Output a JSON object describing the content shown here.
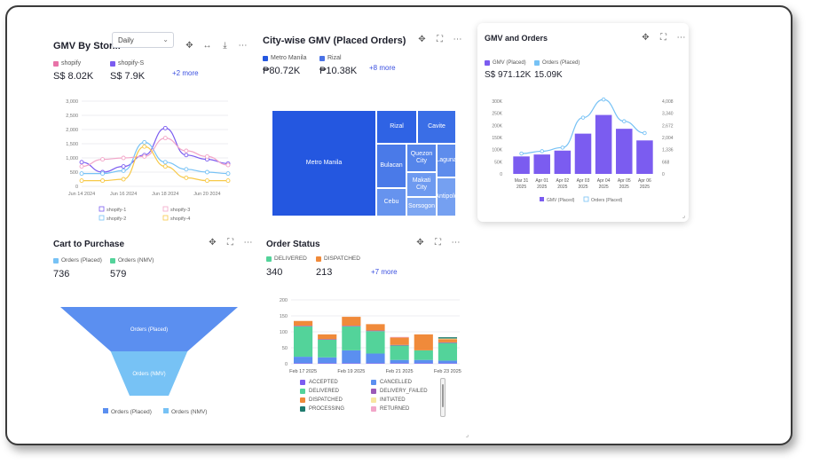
{
  "card1": {
    "title": "GMV By Stor...",
    "dropdown": "Daily",
    "series_labels": [
      "shopify",
      "shopify-S"
    ],
    "values": [
      "S$ 8.02K",
      "S$ 7.9K"
    ],
    "more": "+2 more",
    "colors": [
      "#e873a8",
      "#7b5cf0"
    ]
  },
  "card2": {
    "title": "City-wise GMV (Placed Orders)",
    "series_labels": [
      "Metro Manila",
      "Rizal"
    ],
    "values": [
      "₱80.72K",
      "₱10.38K"
    ],
    "more": "+8 more",
    "colors": [
      "#2457e0",
      "#4a72e6"
    ]
  },
  "card3": {
    "title": "GMV and Orders",
    "series_labels": [
      "GMV (Placed)",
      "Orders (Placed)"
    ],
    "values": [
      "S$ 971.12K",
      "15.09K"
    ],
    "colors": [
      "#7b5cf0",
      "#77c2f5"
    ]
  },
  "card4": {
    "title": "Cart to Purchase",
    "series_labels": [
      "Orders (Placed)",
      "Orders (NMV)"
    ],
    "values": [
      "736",
      "579"
    ],
    "colors": [
      "#77c2f5",
      "#53d39a"
    ]
  },
  "card5": {
    "title": "Order Status",
    "series_labels": [
      "DELIVERED",
      "DISPATCHED"
    ],
    "values": [
      "340",
      "213"
    ],
    "more": "+7 more",
    "colors": [
      "#53d39a",
      "#f08a3a"
    ]
  },
  "chart_data": [
    {
      "type": "line",
      "x": [
        "Jun 14 2024",
        "Jun 15 2024",
        "Jun 16 2024",
        "Jun 17 2024",
        "Jun 18 2024",
        "Jun 19 2024",
        "Jun 20 2024",
        "Jun 21 2024"
      ],
      "xticks": [
        "Jun 14 2024",
        "Jun 16 2024",
        "Jun 18 2024",
        "Jun 20 2024"
      ],
      "ylim": [
        0,
        3000
      ],
      "yticks": [
        "0",
        "500",
        "1,000",
        "1,500",
        "2,000",
        "2,500",
        "3,000"
      ],
      "series": [
        {
          "name": "shopify-1",
          "color": "#7b5cf0",
          "values": [
            850,
            500,
            700,
            1100,
            2050,
            1100,
            950,
            800
          ]
        },
        {
          "name": "shopify-2",
          "color": "#77c2f5",
          "values": [
            450,
            450,
            550,
            1550,
            850,
            600,
            500,
            450
          ]
        },
        {
          "name": "shopify-3",
          "color": "#f2a6c8",
          "values": [
            700,
            950,
            1000,
            1050,
            1700,
            1250,
            1050,
            750
          ]
        },
        {
          "name": "shopify-4",
          "color": "#f7c948",
          "values": [
            200,
            200,
            250,
            1400,
            700,
            300,
            200,
            200
          ]
        }
      ],
      "legend": [
        "shopify-1",
        "shopify-3",
        "shopify-2",
        "shopify-4"
      ]
    },
    {
      "type": "treemap",
      "cells": [
        {
          "label": "Metro Manila"
        },
        {
          "label": "Rizal"
        },
        {
          "label": "Cavite"
        },
        {
          "label": "Bulacan"
        },
        {
          "label": "Quezon City"
        },
        {
          "label": "Laguna"
        },
        {
          "label": "Cebu"
        },
        {
          "label": "Makati City"
        },
        {
          "label": "Antipolo"
        },
        {
          "label": "Sorsogon"
        }
      ]
    },
    {
      "type": "bar+line",
      "categories": [
        "Mar 31 2025",
        "Apr 01 2025",
        "Apr 02 2025",
        "Apr 03 2025",
        "Apr 04 2025",
        "Apr 05 2025",
        "Apr 06 2025"
      ],
      "category_lines": [
        [
          "Mar 31",
          "2025"
        ],
        [
          "Apr 01",
          "2025"
        ],
        [
          "Apr 02",
          "2025"
        ],
        [
          "Apr 03",
          "2025"
        ],
        [
          "Apr 04",
          "2025"
        ],
        [
          "Apr 05",
          "2025"
        ],
        [
          "Apr 06",
          "2025"
        ]
      ],
      "bars": {
        "name": "GMV (Placed)",
        "color": "#7b5cf0",
        "values": [
          72000,
          80000,
          96000,
          166000,
          243000,
          186000,
          138000
        ]
      },
      "line": {
        "name": "Orders (Placed)",
        "color": "#77c2f5",
        "values": [
          1120,
          1250,
          1450,
          3100,
          4100,
          2900,
          2250
        ]
      },
      "ylim_left": [
        0,
        300000
      ],
      "yticks_left": [
        "0",
        "50K",
        "100K",
        "150K",
        "200K",
        "250K",
        "300K"
      ],
      "ylim_right": [
        0,
        4008
      ],
      "yticks_right": [
        "0",
        "668",
        "1,336",
        "2,004",
        "2,672",
        "3,340",
        "4,008"
      ]
    },
    {
      "type": "funnel",
      "stages": [
        {
          "name": "Orders (Placed)",
          "value": 736,
          "color": "#5b8ff0"
        },
        {
          "name": "Orders (NMV)",
          "value": 579,
          "color": "#77c2f5"
        }
      ]
    },
    {
      "type": "stacked-bar",
      "categories": [
        "Feb 17 2025",
        "Feb 18 2025",
        "Feb 19 2025",
        "Feb 20 2025",
        "Feb 21 2025",
        "Feb 22 2025",
        "Feb 23 2025"
      ],
      "xticks": [
        "Feb 17 2025",
        "Feb 19 2025",
        "Feb 21 2025",
        "Feb 23 2025"
      ],
      "ylim": [
        0,
        200
      ],
      "yticks": [
        "0",
        "50",
        "100",
        "150",
        "200"
      ],
      "series": [
        {
          "name": "ACCEPTED",
          "color": "#7b5cf0",
          "values": [
            2,
            2,
            2,
            2,
            2,
            2,
            2
          ]
        },
        {
          "name": "CANCELLED",
          "color": "#5b8ff0",
          "values": [
            20,
            18,
            40,
            30,
            10,
            10,
            8
          ]
        },
        {
          "name": "DELIVERED",
          "color": "#53d39a",
          "values": [
            95,
            55,
            75,
            70,
            45,
            30,
            55
          ]
        },
        {
          "name": "DELIVERY_FAILED",
          "color": "#9b59b6",
          "values": [
            2,
            2,
            2,
            2,
            2,
            0,
            2
          ]
        },
        {
          "name": "DISPATCHED",
          "color": "#f08a3a",
          "values": [
            15,
            15,
            28,
            20,
            23,
            50,
            10
          ]
        },
        {
          "name": "INITIATED",
          "color": "#f7e6a0",
          "values": [
            0,
            0,
            0,
            0,
            0,
            0,
            2
          ]
        },
        {
          "name": "PROCESSING",
          "color": "#1e7a6e",
          "values": [
            0,
            0,
            0,
            0,
            0,
            0,
            4
          ]
        },
        {
          "name": "RETURNED",
          "color": "#f2a6c8",
          "values": [
            0,
            0,
            0,
            0,
            2,
            0,
            0
          ]
        }
      ]
    }
  ]
}
